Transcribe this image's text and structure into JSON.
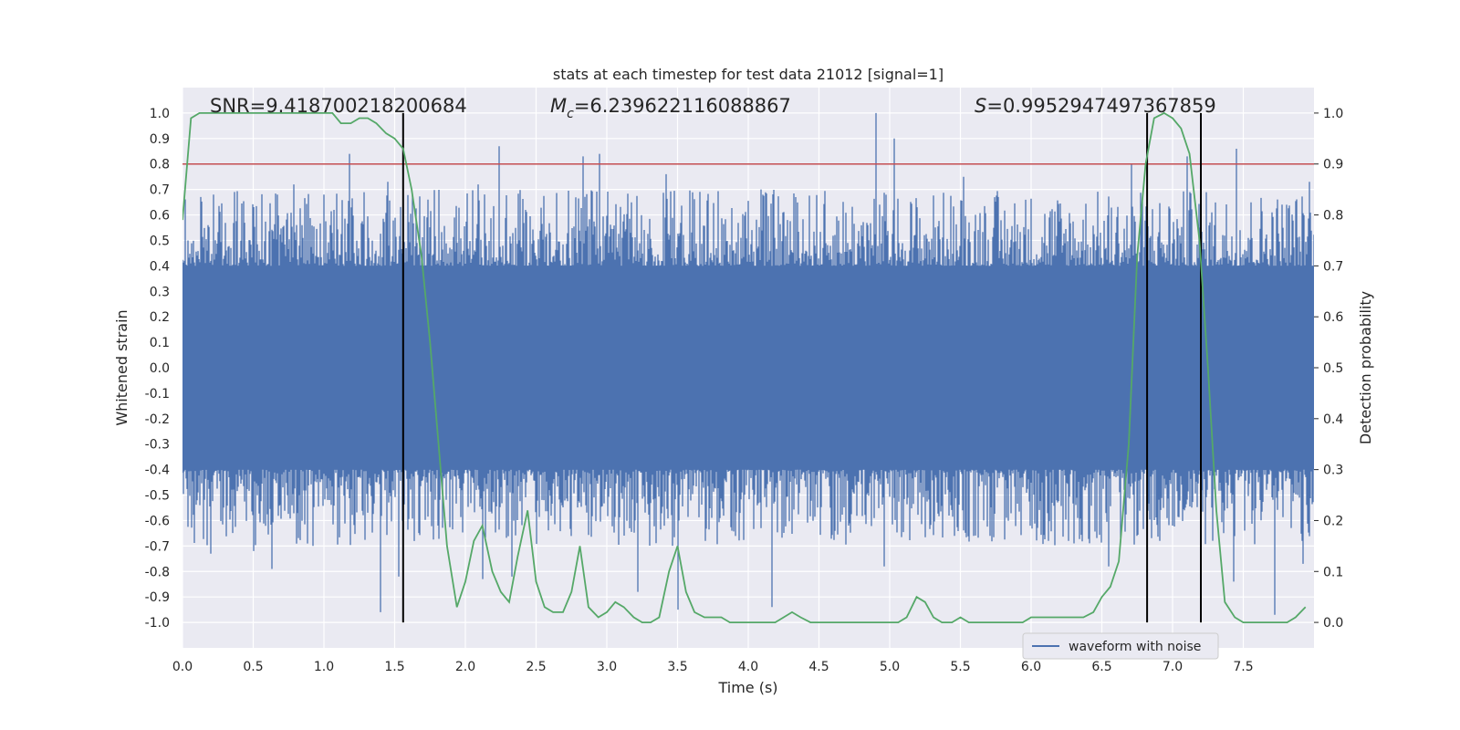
{
  "chart_data": {
    "type": "line",
    "title": "stats at each timestep for test data 21012 [signal=1]",
    "xlabel": "Time (s)",
    "ylabel": "Whitened strain",
    "ylabel_right": "Detection probability",
    "xlim": [
      0,
      8
    ],
    "ylim": [
      -1.1,
      1.1
    ],
    "ylim_right": [
      -0.05,
      1.05
    ],
    "xticks": [
      0.0,
      0.5,
      1.0,
      1.5,
      2.0,
      2.5,
      3.0,
      3.5,
      4.0,
      4.5,
      5.0,
      5.5,
      6.0,
      6.5,
      7.0,
      7.5
    ],
    "xtick_labels": [
      "0.0",
      "0.5",
      "1.0",
      "1.5",
      "2.0",
      "2.5",
      "3.0",
      "3.5",
      "4.0",
      "4.5",
      "5.0",
      "5.5",
      "6.0",
      "6.5",
      "7.0",
      "7.5"
    ],
    "yticks": [
      1.0,
      0.9,
      0.8,
      0.7,
      0.6,
      0.5,
      0.4,
      0.3,
      0.2,
      0.1,
      0.0,
      -0.1,
      -0.2,
      -0.3,
      -0.4,
      -0.5,
      -0.6,
      -0.7,
      -0.8,
      -0.9,
      -1.0
    ],
    "ytick_labels": [
      "1.0",
      "0.9",
      "0.8",
      "0.7",
      "0.6",
      "0.5",
      "0.4",
      "0.3",
      "0.2",
      "0.1",
      "0.0",
      "-0.1",
      "-0.2",
      "-0.3",
      "-0.4",
      "-0.5",
      "-0.6",
      "-0.7",
      "-0.8",
      "-0.9",
      "-1.0"
    ],
    "yticks_right": [
      1.0,
      0.9,
      0.8,
      0.7,
      0.6,
      0.5,
      0.4,
      0.3,
      0.2,
      0.1,
      0.0
    ],
    "ytick_labels_right": [
      "1.0",
      "0.9",
      "0.8",
      "0.7",
      "0.6",
      "0.5",
      "0.4",
      "0.3",
      "0.2",
      "0.1",
      "0.0"
    ],
    "annotations": {
      "snr": "SNR=9.418700218200684",
      "mc_symbol": "M",
      "mc_sub": "c",
      "mc_value": "=6.239622116088867",
      "s_symbol": "S",
      "s_value": "=0.9952947497367859"
    },
    "threshold": {
      "value": 0.9,
      "axis": "right",
      "color": "#c44e52"
    },
    "vlines": [
      1.56,
      6.82,
      7.2
    ],
    "vline_range_right": [
      0.0,
      1.0
    ],
    "legend": {
      "label": "waveform with noise",
      "location": "lower-right"
    },
    "series": [
      {
        "name": "waveform with noise",
        "axis": "left",
        "color": "#4c72b0",
        "noise_envelope": 0.4,
        "peak_spikes": [
          {
            "x": 0.04,
            "y": 0.5
          },
          {
            "x": 0.22,
            "y": 0.68
          },
          {
            "x": 0.37,
            "y": 0.69
          },
          {
            "x": 0.67,
            "y": 0.68
          },
          {
            "x": 0.79,
            "y": 0.72
          },
          {
            "x": 1.07,
            "y": 0.62
          },
          {
            "x": 1.18,
            "y": 0.84
          },
          {
            "x": 1.45,
            "y": 0.73
          },
          {
            "x": 2.09,
            "y": 0.72
          },
          {
            "x": 2.24,
            "y": 0.87
          },
          {
            "x": 2.83,
            "y": 0.83
          },
          {
            "x": 2.95,
            "y": 0.84
          },
          {
            "x": 3.42,
            "y": 0.76
          },
          {
            "x": 4.09,
            "y": 0.7
          },
          {
            "x": 4.9,
            "y": 1.0
          },
          {
            "x": 5.03,
            "y": 0.9
          },
          {
            "x": 5.52,
            "y": 0.75
          },
          {
            "x": 6.71,
            "y": 0.8
          },
          {
            "x": 7.1,
            "y": 0.83
          },
          {
            "x": 7.45,
            "y": 0.86
          },
          {
            "x": 7.97,
            "y": 0.73
          }
        ],
        "trough_spikes": [
          {
            "x": 0.2,
            "y": -0.73
          },
          {
            "x": 0.5,
            "y": -0.72
          },
          {
            "x": 0.63,
            "y": -0.79
          },
          {
            "x": 1.4,
            "y": -0.96
          },
          {
            "x": 1.53,
            "y": -0.82
          },
          {
            "x": 2.12,
            "y": -0.83
          },
          {
            "x": 2.33,
            "y": -0.82
          },
          {
            "x": 3.22,
            "y": -0.88
          },
          {
            "x": 3.5,
            "y": -0.95
          },
          {
            "x": 4.17,
            "y": -0.94
          },
          {
            "x": 4.96,
            "y": -0.78
          },
          {
            "x": 6.55,
            "y": -0.78
          },
          {
            "x": 7.43,
            "y": -0.84
          },
          {
            "x": 7.72,
            "y": -0.97
          },
          {
            "x": 7.92,
            "y": -0.77
          }
        ]
      },
      {
        "name": "detection probability",
        "axis": "right",
        "color": "#55a868",
        "x": [
          0.0,
          0.06,
          0.12,
          0.19,
          0.25,
          0.31,
          0.37,
          0.44,
          0.5,
          0.56,
          0.62,
          0.69,
          0.75,
          0.81,
          0.87,
          0.94,
          1.0,
          1.06,
          1.12,
          1.19,
          1.25,
          1.31,
          1.37,
          1.44,
          1.5,
          1.56,
          1.62,
          1.69,
          1.75,
          1.81,
          1.87,
          1.94,
          2.0,
          2.06,
          2.12,
          2.19,
          2.25,
          2.31,
          2.37,
          2.44,
          2.5,
          2.56,
          2.62,
          2.69,
          2.75,
          2.81,
          2.87,
          2.94,
          3.0,
          3.06,
          3.12,
          3.19,
          3.25,
          3.31,
          3.37,
          3.44,
          3.5,
          3.56,
          3.62,
          3.69,
          3.75,
          3.81,
          3.87,
          3.94,
          4.0,
          4.06,
          4.12,
          4.19,
          4.25,
          4.31,
          4.37,
          4.44,
          4.5,
          4.56,
          4.62,
          4.69,
          4.75,
          4.81,
          4.87,
          4.94,
          5.0,
          5.06,
          5.12,
          5.19,
          5.25,
          5.31,
          5.37,
          5.44,
          5.5,
          5.56,
          5.62,
          5.69,
          5.75,
          5.81,
          5.87,
          5.94,
          6.0,
          6.06,
          6.12,
          6.19,
          6.25,
          6.31,
          6.37,
          6.44,
          6.5,
          6.56,
          6.62,
          6.69,
          6.75,
          6.81,
          6.87,
          6.94,
          7.0,
          7.06,
          7.12,
          7.19,
          7.25,
          7.31,
          7.37,
          7.44,
          7.5,
          7.56,
          7.62,
          7.69,
          7.75,
          7.81,
          7.87,
          7.94
        ],
        "values": [
          0.79,
          0.99,
          1.0,
          1.0,
          1.0,
          1.0,
          1.0,
          1.0,
          1.0,
          1.0,
          1.0,
          1.0,
          1.0,
          1.0,
          1.0,
          1.0,
          1.0,
          1.0,
          0.98,
          0.98,
          0.99,
          0.99,
          0.98,
          0.96,
          0.95,
          0.93,
          0.85,
          0.72,
          0.55,
          0.35,
          0.15,
          0.03,
          0.08,
          0.16,
          0.19,
          0.1,
          0.06,
          0.04,
          0.13,
          0.22,
          0.08,
          0.03,
          0.02,
          0.02,
          0.06,
          0.15,
          0.03,
          0.01,
          0.02,
          0.04,
          0.03,
          0.01,
          0.0,
          0.0,
          0.01,
          0.1,
          0.15,
          0.06,
          0.02,
          0.01,
          0.01,
          0.01,
          0.0,
          0.0,
          0.0,
          0.0,
          0.0,
          0.0,
          0.01,
          0.02,
          0.01,
          0.0,
          0.0,
          0.0,
          0.0,
          0.0,
          0.0,
          0.0,
          0.0,
          0.0,
          0.0,
          0.0,
          0.01,
          0.05,
          0.04,
          0.01,
          0.0,
          0.0,
          0.01,
          0.0,
          0.0,
          0.0,
          0.0,
          0.0,
          0.0,
          0.0,
          0.01,
          0.01,
          0.01,
          0.01,
          0.01,
          0.01,
          0.01,
          0.02,
          0.05,
          0.07,
          0.12,
          0.35,
          0.72,
          0.9,
          0.99,
          1.0,
          0.99,
          0.97,
          0.92,
          0.75,
          0.5,
          0.22,
          0.04,
          0.01,
          0.0,
          0.0,
          0.0,
          0.0,
          0.0,
          0.0,
          0.01,
          0.03
        ]
      }
    ]
  }
}
